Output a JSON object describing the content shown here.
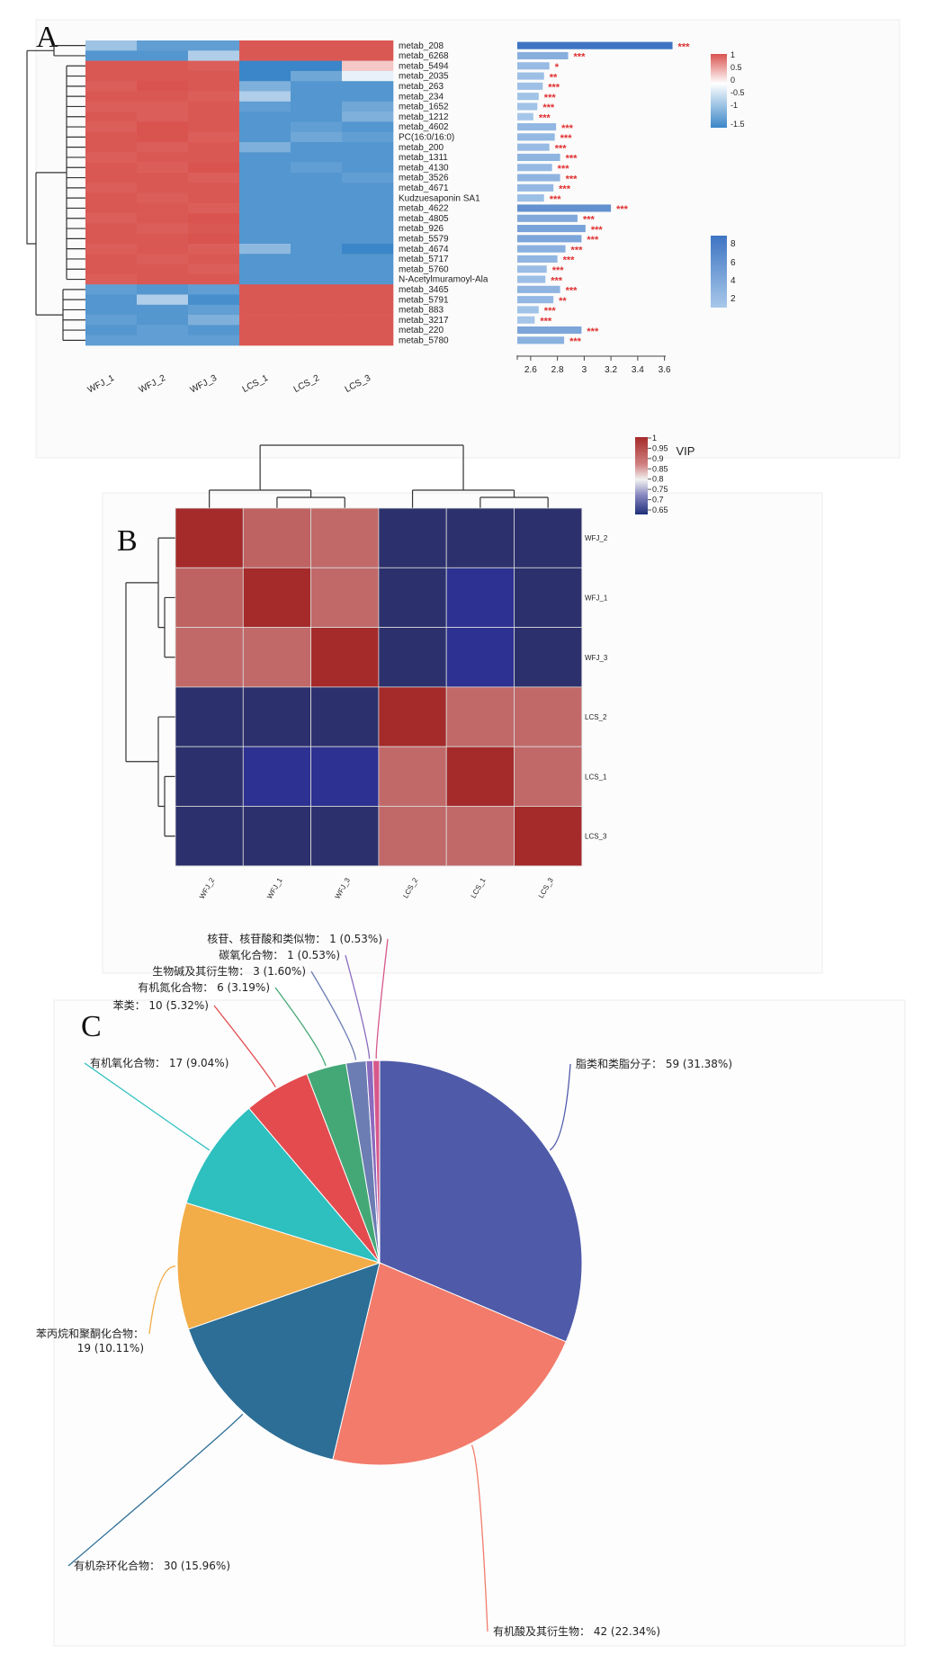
{
  "panels": {
    "a": "A",
    "b": "B",
    "c": "C"
  },
  "chart_data": [
    {
      "type": "heatmap",
      "panel": "A",
      "columns": [
        "WFJ_1",
        "WFJ_2",
        "WFJ_3",
        "LCS_1",
        "LCS_2",
        "LCS_3"
      ],
      "rows": [
        "metab_208",
        "metab_6268",
        "metab_5494",
        "metab_2035",
        "metab_263",
        "metab_234",
        "metab_1652",
        "metab_1212",
        "metab_4602",
        "PC(16:0/16:0)",
        "metab_200",
        "metab_1311",
        "metab_4130",
        "metab_3526",
        "metab_4671",
        "Kudzuesaponin SA1",
        "metab_4622",
        "metab_4805",
        "metab_926",
        "metab_5579",
        "metab_4674",
        "metab_5717",
        "metab_5760",
        "N-Acetylmuramoyl-Ala",
        "metab_3465",
        "metab_5791",
        "metab_883",
        "metab_3217",
        "metab_220",
        "metab_5780"
      ],
      "values": [
        [
          -0.4,
          -0.8,
          -0.8,
          0.95,
          0.95,
          0.95
        ],
        [
          -0.9,
          -0.9,
          -0.3,
          0.95,
          0.95,
          0.95
        ],
        [
          0.95,
          0.95,
          0.9,
          -1.3,
          -1.3,
          0.15
        ],
        [
          0.95,
          0.95,
          0.95,
          -1.5,
          -0.7,
          -0.05
        ],
        [
          0.9,
          1.0,
          0.95,
          -0.6,
          -0.9,
          -0.9
        ],
        [
          0.95,
          0.95,
          0.9,
          -0.3,
          -0.9,
          -0.9
        ],
        [
          0.9,
          0.9,
          0.95,
          -0.8,
          -0.9,
          -0.7
        ],
        [
          0.95,
          0.9,
          0.95,
          -0.9,
          -0.9,
          -0.6
        ],
        [
          0.9,
          1.0,
          0.95,
          -0.9,
          -0.8,
          -0.9
        ],
        [
          0.95,
          1.0,
          0.9,
          -0.9,
          -0.7,
          -0.8
        ],
        [
          0.95,
          0.9,
          0.95,
          -0.6,
          -0.9,
          -0.9
        ],
        [
          0.9,
          0.95,
          0.95,
          -0.9,
          -0.9,
          -0.9
        ],
        [
          0.95,
          0.9,
          1.0,
          -0.9,
          -0.8,
          -0.9
        ],
        [
          0.95,
          0.95,
          0.9,
          -0.9,
          -0.9,
          -0.8
        ],
        [
          0.9,
          0.95,
          0.95,
          -0.9,
          -0.9,
          -0.9
        ],
        [
          0.95,
          0.9,
          0.95,
          -0.9,
          -0.9,
          -0.9
        ],
        [
          0.95,
          0.95,
          0.9,
          -0.9,
          -0.9,
          -0.9
        ],
        [
          0.9,
          0.95,
          1.0,
          -0.9,
          -0.9,
          -0.9
        ],
        [
          0.95,
          0.9,
          0.95,
          -0.9,
          -0.9,
          -0.9
        ],
        [
          0.95,
          0.95,
          1.0,
          -0.9,
          -0.9,
          -0.9
        ],
        [
          0.9,
          0.95,
          0.9,
          -0.5,
          -0.9,
          -1.2
        ],
        [
          0.95,
          0.9,
          0.95,
          -0.9,
          -0.9,
          -0.9
        ],
        [
          0.95,
          0.95,
          0.9,
          -0.9,
          -0.9,
          -0.9
        ],
        [
          0.9,
          0.95,
          0.95,
          -0.9,
          -0.9,
          -0.9
        ],
        [
          -0.8,
          -0.9,
          -0.8,
          0.95,
          0.95,
          0.95
        ],
        [
          -0.9,
          -0.3,
          -1.0,
          0.95,
          0.95,
          0.95
        ],
        [
          -0.9,
          -0.9,
          -0.8,
          0.95,
          0.95,
          0.95
        ],
        [
          -0.8,
          -0.9,
          -0.6,
          0.95,
          0.95,
          0.95
        ],
        [
          -0.9,
          -0.8,
          -0.9,
          0.95,
          0.95,
          0.95
        ],
        [
          -0.8,
          -0.8,
          -0.8,
          0.95,
          0.95,
          0.95
        ]
      ],
      "color_scale": {
        "ticks": [
          "1",
          "0.5",
          "0",
          "-0.5",
          "-1",
          "-1.5"
        ],
        "range": [
          -1.5,
          1
        ],
        "colors": [
          "#3f7fc2",
          "#ffffff",
          "#d9534f"
        ]
      }
    },
    {
      "type": "bar",
      "panel": "A",
      "orientation": "horizontal",
      "categories": [
        "metab_208",
        "metab_6268",
        "metab_5494",
        "metab_2035",
        "metab_263",
        "metab_234",
        "metab_1652",
        "metab_1212",
        "metab_4602",
        "PC(16:0/16:0)",
        "metab_200",
        "metab_1311",
        "metab_4130",
        "metab_3526",
        "metab_4671",
        "Kudzuesaponin SA1",
        "metab_4622",
        "metab_4805",
        "metab_926",
        "metab_5579",
        "metab_4674",
        "metab_5717",
        "metab_5760",
        "N-Acetylmuramoyl-Ala",
        "metab_3465",
        "metab_5791",
        "metab_883",
        "metab_3217",
        "metab_220",
        "metab_5780"
      ],
      "values": [
        3.66,
        2.88,
        2.74,
        2.7,
        2.69,
        2.66,
        2.65,
        2.62,
        2.79,
        2.78,
        2.74,
        2.82,
        2.76,
        2.82,
        2.77,
        2.7,
        3.2,
        2.95,
        3.01,
        2.98,
        2.86,
        2.8,
        2.72,
        2.71,
        2.82,
        2.77,
        2.66,
        2.63,
        2.98,
        2.85
      ],
      "significance": [
        "***",
        "***",
        "*",
        "**",
        "***",
        "***",
        "***",
        "***",
        "***",
        "***",
        "***",
        "***",
        "***",
        "***",
        "***",
        "***",
        "***",
        "***",
        "***",
        "***",
        "***",
        "***",
        "***",
        "***",
        "***",
        "**",
        "***",
        "***",
        "***",
        "***"
      ],
      "xlabel": "VIP",
      "xticks": [
        "2.6",
        "2.8",
        "3",
        "3.2",
        "3.4",
        "3.6"
      ],
      "xlim": [
        2.5,
        3.7
      ],
      "color_scale": {
        "ticks": [
          "8",
          "6",
          "4",
          "2"
        ],
        "range": [
          1,
          9
        ]
      }
    },
    {
      "type": "heatmap",
      "panel": "B",
      "rows": [
        "WFJ_2",
        "WFJ_1",
        "WFJ_3",
        "LCS_2",
        "LCS_1",
        "LCS_3"
      ],
      "columns": [
        "WFJ_2",
        "WFJ_1",
        "WFJ_3",
        "LCS_2",
        "LCS_1",
        "LCS_3"
      ],
      "values": [
        [
          1.0,
          0.92,
          0.91,
          0.66,
          0.66,
          0.66
        ],
        [
          0.92,
          1.0,
          0.91,
          0.66,
          0.67,
          0.66
        ],
        [
          0.91,
          0.91,
          1.0,
          0.66,
          0.67,
          0.66
        ],
        [
          0.66,
          0.66,
          0.66,
          1.0,
          0.91,
          0.91
        ],
        [
          0.66,
          0.67,
          0.67,
          0.91,
          1.0,
          0.91
        ],
        [
          0.66,
          0.66,
          0.66,
          0.91,
          0.91,
          1.0
        ]
      ],
      "color_scale": {
        "ticks": [
          "1",
          "0.95",
          "0.9",
          "0.85",
          "0.8",
          "0.75",
          "0.7",
          "0.65"
        ],
        "range": [
          0.65,
          1
        ]
      }
    },
    {
      "type": "pie",
      "panel": "C",
      "slices": [
        {
          "label": "脂类和类脂分子",
          "value": 59,
          "percent": "31.38%",
          "text": "脂类和类脂分子： 59 (31.38%)",
          "color": "#4f5aa9"
        },
        {
          "label": "有机酸及其衍生物",
          "value": 42,
          "percent": "22.34%",
          "text": "有机酸及其衍生物： 42 (22.34%)",
          "color": "#f27b6b"
        },
        {
          "label": "有机杂环化合物",
          "value": 30,
          "percent": "15.96%",
          "text": "有机杂环化合物： 30 (15.96%)",
          "color": "#2c6e96"
        },
        {
          "label": "苯丙烷和聚酮化合物",
          "value": 19,
          "percent": "10.11%",
          "text": "苯丙烷和聚酮化合物：",
          "text2": "19 (10.11%)",
          "color": "#f2ac48"
        },
        {
          "label": "有机氧化合物",
          "value": 17,
          "percent": "9.04%",
          "text": "有机氧化合物： 17 (9.04%)",
          "color": "#2ebfbf"
        },
        {
          "label": "苯类",
          "value": 10,
          "percent": "5.32%",
          "text": "苯类： 10 (5.32%)",
          "color": "#e34b4f"
        },
        {
          "label": "有机氮化合物",
          "value": 6,
          "percent": "3.19%",
          "text": "有机氮化合物： 6 (3.19%)",
          "color": "#44a876"
        },
        {
          "label": "生物碱及其衍生物",
          "value": 3,
          "percent": "1.60%",
          "text": "生物碱及其衍生物： 3 (1.60%)",
          "color": "#6b7db3"
        },
        {
          "label": "碳氧化合物",
          "value": 1,
          "percent": "0.53%",
          "text": "碳氧化合物： 1 (0.53%)",
          "color": "#8a6bbf"
        },
        {
          "label": "核苷、核苷酸和类似物",
          "value": 1,
          "percent": "0.53%",
          "text": "核苷、核苷酸和类似物： 1 (0.53%)",
          "color": "#d6588a"
        }
      ]
    }
  ]
}
